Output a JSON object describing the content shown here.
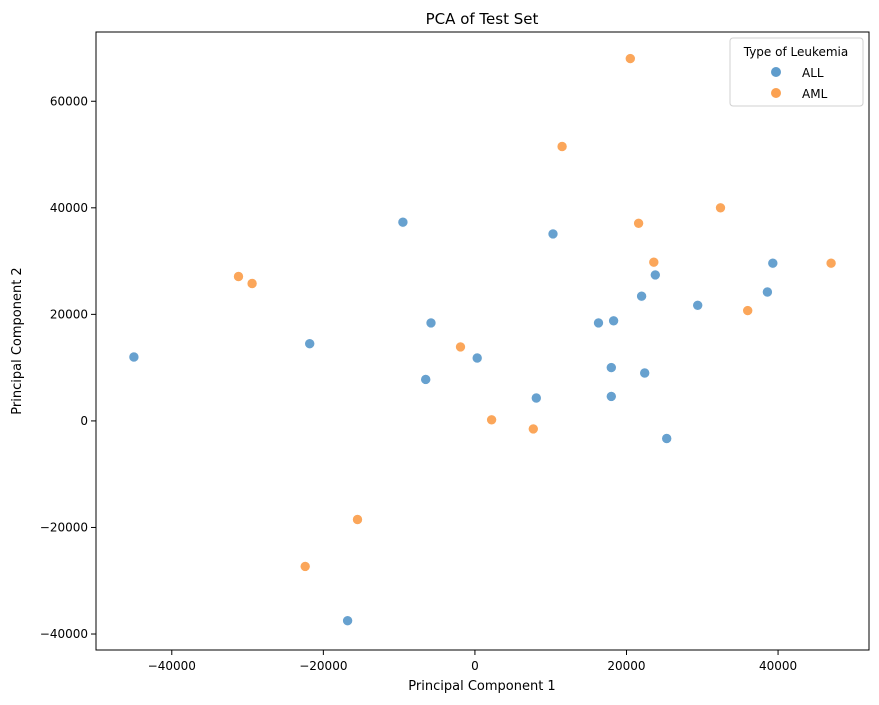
{
  "chart_data": {
    "type": "scatter",
    "title": "PCA of Test Set",
    "xlabel": "Principal Component 1",
    "ylabel": "Principal Component 2",
    "xlim": [
      -50000,
      52000
    ],
    "ylim": [
      -43000,
      73000
    ],
    "xticks": [
      -40000,
      -20000,
      0,
      20000,
      40000
    ],
    "yticks": [
      -40000,
      -20000,
      0,
      20000,
      40000,
      60000
    ],
    "grid": false,
    "legend": {
      "title": "Type of Leukemia",
      "position": "top-right"
    },
    "series": [
      {
        "name": "ALL",
        "color": "#5f9ccc",
        "points": [
          [
            -45000,
            12000
          ],
          [
            -21800,
            14500
          ],
          [
            -16800,
            -37500
          ],
          [
            -9500,
            37300
          ],
          [
            -6500,
            7800
          ],
          [
            -5800,
            18400
          ],
          [
            300,
            11800
          ],
          [
            8100,
            4300
          ],
          [
            10300,
            35100
          ],
          [
            16300,
            18400
          ],
          [
            18000,
            10000
          ],
          [
            18000,
            4600
          ],
          [
            18300,
            18800
          ],
          [
            22000,
            23400
          ],
          [
            22400,
            9000
          ],
          [
            23800,
            27400
          ],
          [
            25300,
            -3300
          ],
          [
            29400,
            21700
          ],
          [
            38600,
            24200
          ],
          [
            39300,
            29600
          ]
        ]
      },
      {
        "name": "AML",
        "color": "#fba151",
        "points": [
          [
            -31200,
            27100
          ],
          [
            -29400,
            25800
          ],
          [
            -22400,
            -27300
          ],
          [
            -15500,
            -18500
          ],
          [
            -1900,
            13900
          ],
          [
            2200,
            200
          ],
          [
            7700,
            -1500
          ],
          [
            11500,
            51500
          ],
          [
            20500,
            68000
          ],
          [
            21600,
            37100
          ],
          [
            23600,
            29800
          ],
          [
            32400,
            40000
          ],
          [
            36000,
            20700
          ],
          [
            47000,
            29600
          ]
        ]
      }
    ]
  }
}
